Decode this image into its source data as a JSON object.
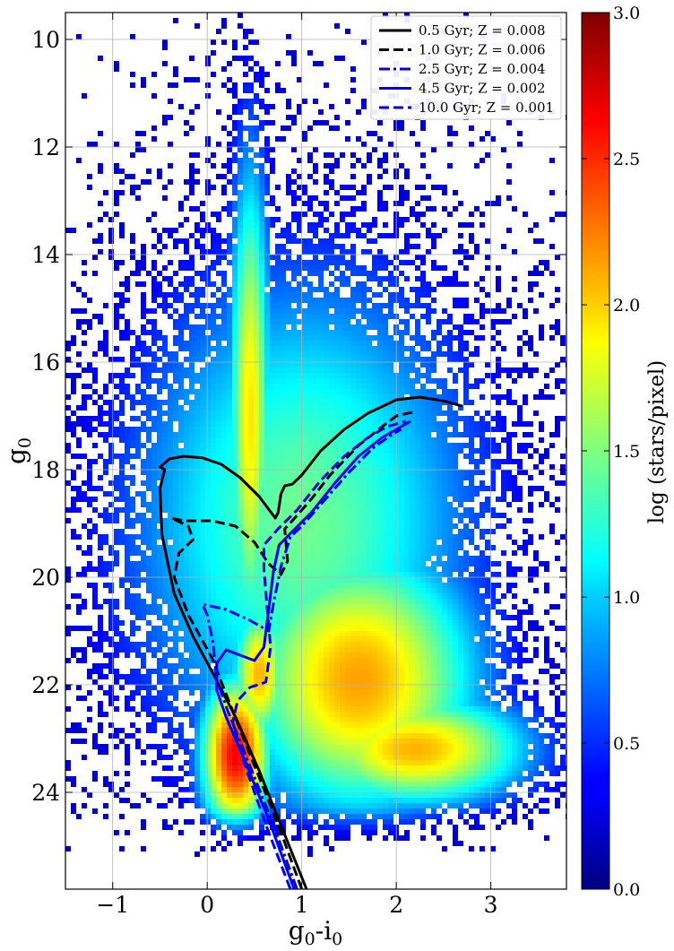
{
  "chart_data": {
    "type": "heatmap",
    "title": "",
    "xlabel": {
      "main": "g",
      "sub1": "0",
      "dash": "-i",
      "sub2": "0"
    },
    "ylabel": {
      "main": "g",
      "sub": "0"
    },
    "xlim": [
      -1.5,
      3.8
    ],
    "ylim": [
      25.8,
      9.5
    ],
    "y_inverted": true,
    "xticks": [
      -1,
      0,
      1,
      2,
      3
    ],
    "xtick_labels": [
      "−1",
      "0",
      "1",
      "2",
      "3"
    ],
    "yticks": [
      10,
      12,
      14,
      16,
      18,
      20,
      22,
      24
    ],
    "ytick_labels": [
      "10",
      "12",
      "14",
      "16",
      "18",
      "20",
      "22",
      "24"
    ],
    "grid": true,
    "colormap": "jet",
    "colorbar": {
      "label": "log (stars/pixel)",
      "range": [
        0.0,
        3.0
      ],
      "ticks": [
        0.0,
        0.5,
        1.0,
        1.5,
        2.0,
        2.5,
        3.0
      ],
      "tick_labels": [
        "0.0",
        "0.5",
        "1.0",
        "1.5",
        "2.0",
        "2.5",
        "3.0"
      ]
    },
    "density_components": [
      {
        "kind": "main-sequence",
        "x": 0.3,
        "y": 23.3,
        "sx": 0.28,
        "sy": 1.1,
        "amp": 2.65
      },
      {
        "kind": "sequence-stem",
        "x": 0.55,
        "y": 21.8,
        "sx": 0.22,
        "sy": 1.0,
        "amp": 2.1
      },
      {
        "kind": "blue-plume",
        "x": 0.45,
        "y": 17.0,
        "sx": 0.17,
        "sy": 3.6,
        "amp": 1.95
      },
      {
        "kind": "red-clump-disc",
        "x": 1.6,
        "y": 21.9,
        "sx": 0.95,
        "sy": 1.9,
        "amp": 2.15
      },
      {
        "kind": "faint-red-clump",
        "x": 2.2,
        "y": 23.2,
        "sx": 0.9,
        "sy": 0.8,
        "amp": 2.1
      },
      {
        "kind": "halo",
        "x": 1.0,
        "y": 19.0,
        "sx": 1.4,
        "sy": 3.6,
        "amp": 1.45
      }
    ],
    "legend": {
      "position": "upper-right"
    },
    "series": [
      {
        "name": "0.5 Gyr; Z = 0.008",
        "color": "#000000",
        "style": "solid",
        "points": [
          [
            1.05,
            25.8
          ],
          [
            0.8,
            24.7
          ],
          [
            0.55,
            23.6
          ],
          [
            0.3,
            22.6
          ],
          [
            0.08,
            21.85
          ],
          [
            -0.15,
            21.1
          ],
          [
            -0.35,
            20.3
          ],
          [
            -0.48,
            19.2
          ],
          [
            -0.5,
            18.35
          ],
          [
            -0.45,
            18.0
          ],
          [
            -0.5,
            17.95
          ],
          [
            -0.4,
            17.8
          ],
          [
            -0.25,
            17.75
          ],
          [
            -0.05,
            17.78
          ],
          [
            0.15,
            17.9
          ],
          [
            0.35,
            18.15
          ],
          [
            0.55,
            18.5
          ],
          [
            0.72,
            18.9
          ],
          [
            0.75,
            18.8
          ],
          [
            0.78,
            18.45
          ],
          [
            0.82,
            18.3
          ],
          [
            0.9,
            18.27
          ],
          [
            1.0,
            18.1
          ],
          [
            1.2,
            17.65
          ],
          [
            1.45,
            17.25
          ],
          [
            1.7,
            16.95
          ],
          [
            2.0,
            16.7
          ],
          [
            2.25,
            16.65
          ],
          [
            2.5,
            16.72
          ],
          [
            2.7,
            16.82
          ]
        ]
      },
      {
        "name": "1.0 Gyr; Z = 0.006",
        "color": "#000000",
        "style": "dashed",
        "points": [
          [
            1.0,
            25.8
          ],
          [
            0.75,
            24.6
          ],
          [
            0.5,
            23.5
          ],
          [
            0.25,
            22.4
          ],
          [
            0.05,
            21.5
          ],
          [
            -0.2,
            20.7
          ],
          [
            -0.35,
            20.0
          ],
          [
            -0.3,
            19.55
          ],
          [
            -0.15,
            19.3
          ],
          [
            -0.2,
            19.05
          ],
          [
            -0.38,
            18.9
          ],
          [
            -0.25,
            18.95
          ],
          [
            0.05,
            18.95
          ],
          [
            0.3,
            19.05
          ],
          [
            0.5,
            19.35
          ],
          [
            0.65,
            19.75
          ],
          [
            0.78,
            19.95
          ],
          [
            0.85,
            19.7
          ],
          [
            0.82,
            19.1
          ],
          [
            0.9,
            18.95
          ],
          [
            1.1,
            18.55
          ],
          [
            1.3,
            18.1
          ],
          [
            1.6,
            17.55
          ],
          [
            1.85,
            17.2
          ],
          [
            2.0,
            17.0
          ],
          [
            2.2,
            16.92
          ]
        ]
      },
      {
        "name": "2.5 Gyr; Z = 0.004",
        "color": "#0000ee",
        "style": "dashdot",
        "points": [
          [
            0.95,
            25.8
          ],
          [
            0.7,
            24.6
          ],
          [
            0.45,
            23.5
          ],
          [
            0.22,
            22.5
          ],
          [
            0.1,
            21.9
          ],
          [
            0.06,
            21.2
          ],
          [
            0.0,
            20.7
          ],
          [
            -0.05,
            20.5
          ],
          [
            0.2,
            20.6
          ],
          [
            0.45,
            20.8
          ],
          [
            0.65,
            21.0
          ],
          [
            0.7,
            20.5
          ],
          [
            0.78,
            19.8
          ],
          [
            0.88,
            19.25
          ],
          [
            1.0,
            19.05
          ],
          [
            1.25,
            18.55
          ],
          [
            1.5,
            18.05
          ],
          [
            1.75,
            17.6
          ],
          [
            1.95,
            17.35
          ],
          [
            2.05,
            17.25
          ]
        ]
      },
      {
        "name": "4.5 Gyr; Z = 0.002",
        "color": "#0000ee",
        "style": "solid",
        "points": [
          [
            0.92,
            25.8
          ],
          [
            0.67,
            24.6
          ],
          [
            0.42,
            23.5
          ],
          [
            0.2,
            22.6
          ],
          [
            0.1,
            22.1
          ],
          [
            0.1,
            21.6
          ],
          [
            0.2,
            21.35
          ],
          [
            0.35,
            21.45
          ],
          [
            0.5,
            21.55
          ],
          [
            0.6,
            21.3
          ],
          [
            0.65,
            20.6
          ],
          [
            0.7,
            19.9
          ],
          [
            0.76,
            19.4
          ],
          [
            0.9,
            19.15
          ],
          [
            1.1,
            18.8
          ],
          [
            1.35,
            18.25
          ],
          [
            1.6,
            17.75
          ],
          [
            1.85,
            17.4
          ],
          [
            2.05,
            17.2
          ],
          [
            2.15,
            17.1
          ]
        ]
      },
      {
        "name": "10.0 Gyr; Z = 0.001",
        "color": "#0000ee",
        "style": "dashed",
        "points": [
          [
            0.88,
            25.8
          ],
          [
            0.62,
            24.6
          ],
          [
            0.4,
            23.5
          ],
          [
            0.27,
            22.7
          ],
          [
            0.32,
            22.3
          ],
          [
            0.45,
            22.05
          ],
          [
            0.62,
            21.95
          ],
          [
            0.67,
            21.3
          ],
          [
            0.63,
            20.5
          ],
          [
            0.6,
            19.85
          ],
          [
            0.6,
            19.4
          ],
          [
            0.75,
            19.1
          ],
          [
            0.95,
            18.75
          ],
          [
            1.2,
            18.2
          ],
          [
            1.45,
            17.75
          ],
          [
            1.7,
            17.4
          ],
          [
            1.9,
            17.2
          ],
          [
            2.1,
            17.1
          ]
        ]
      }
    ]
  }
}
